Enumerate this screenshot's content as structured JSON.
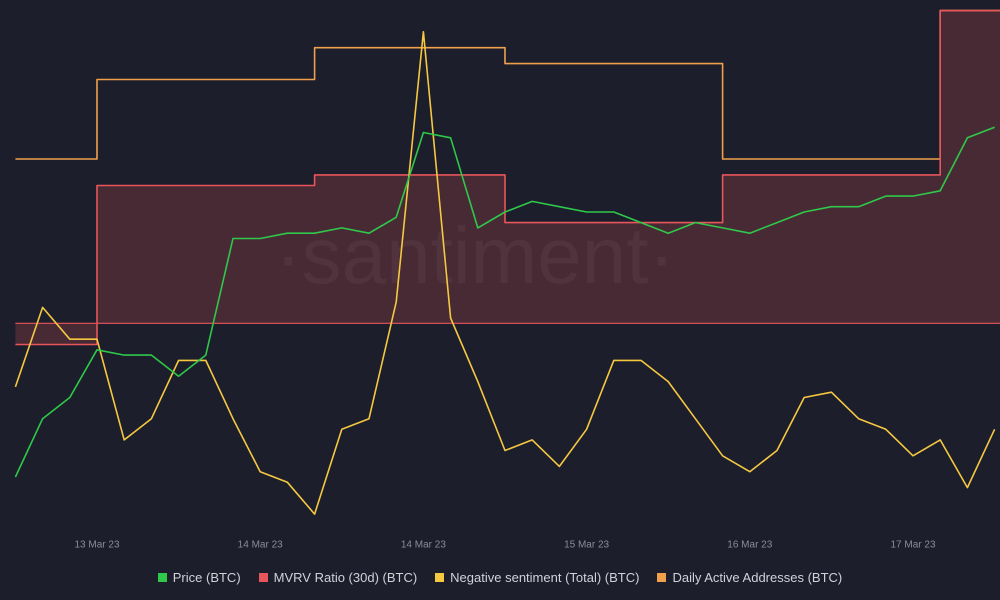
{
  "chart_data": {
    "type": "line",
    "watermark": "·santiment·",
    "categories": [
      null,
      null,
      null,
      "13 Mar 23",
      null,
      null,
      null,
      null,
      null,
      "14 Mar 23",
      null,
      null,
      null,
      null,
      null,
      "14 Mar 23",
      null,
      null,
      null,
      null,
      null,
      "15 Mar 23",
      null,
      null,
      null,
      null,
      null,
      "16 Mar 23",
      null,
      null,
      null,
      null,
      null,
      "17 Mar 23",
      null,
      null,
      null
    ],
    "ylim": [
      0,
      100
    ],
    "series": [
      {
        "name": "Daily Active Addresses (BTC)",
        "color": "#f0a04c",
        "step": true,
        "values": [
          70,
          70,
          70,
          85,
          85,
          85,
          85,
          85,
          85,
          85,
          85,
          91,
          91,
          91,
          91,
          91,
          91,
          91,
          88,
          88,
          88,
          88,
          88,
          88,
          88,
          88,
          70,
          70,
          70,
          70,
          70,
          70,
          70,
          70,
          98,
          98,
          98
        ]
      },
      {
        "name": "MVRV Ratio (30d) (BTC)",
        "color": "#e8555a",
        "step": true,
        "area": true,
        "baseline": 39,
        "values": [
          35,
          35,
          35,
          65,
          65,
          65,
          65,
          65,
          65,
          65,
          65,
          67,
          67,
          67,
          67,
          67,
          67,
          67,
          58,
          58,
          58,
          58,
          58,
          58,
          58,
          58,
          67,
          67,
          67,
          67,
          67,
          67,
          67,
          67,
          98,
          98,
          98
        ]
      },
      {
        "name": "Negative sentiment (Total) (BTC)",
        "color": "#f5c842",
        "values": [
          27,
          42,
          36,
          36,
          17,
          21,
          32,
          32,
          21,
          11,
          9,
          3,
          19,
          21,
          43,
          94,
          40,
          28,
          15,
          17,
          12,
          19,
          32,
          32,
          28,
          21,
          14,
          11,
          15,
          25,
          26,
          21,
          19,
          14,
          17,
          8,
          19
        ]
      },
      {
        "name": "Price (BTC)",
        "color": "#2fc84a",
        "values": [
          10,
          21,
          25,
          34,
          33,
          33,
          29,
          33,
          55,
          55,
          56,
          56,
          57,
          56,
          59,
          75,
          74,
          57,
          60,
          62,
          61,
          60,
          60,
          58,
          56,
          58,
          57,
          56,
          58,
          60,
          61,
          61,
          63,
          63,
          64,
          74,
          76
        ]
      }
    ],
    "legend_order": [
      3,
      1,
      2,
      0
    ]
  }
}
